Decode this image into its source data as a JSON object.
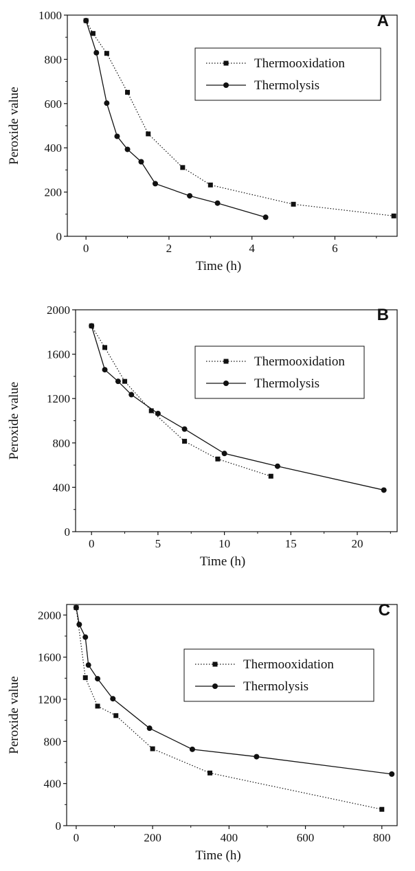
{
  "chart_data": [
    {
      "panel": "A",
      "type": "line",
      "xlabel": "Time (h)",
      "ylabel": "Peroxide value",
      "xlim": [
        -0.45,
        7.5
      ],
      "ylim": [
        0,
        1000
      ],
      "xticks": [
        0,
        2,
        4,
        6
      ],
      "yticks": [
        0,
        200,
        400,
        600,
        800,
        1000
      ],
      "grid": false,
      "legend_position": "top-right",
      "series": [
        {
          "name": "Thermooxidation",
          "marker": "square",
          "line": "dotted",
          "x": [
            0,
            0.17,
            0.5,
            1.0,
            1.5,
            2.33,
            3.0,
            5.0,
            7.42
          ],
          "y": [
            975,
            917,
            827,
            651,
            463,
            311,
            232,
            145,
            92
          ]
        },
        {
          "name": "Thermolysis",
          "marker": "circle",
          "line": "solid",
          "x": [
            0,
            0.25,
            0.5,
            0.75,
            1.0,
            1.33,
            1.67,
            2.5,
            3.17,
            4.33
          ],
          "y": [
            975,
            830,
            602,
            452,
            393,
            337,
            238,
            183,
            150,
            86
          ]
        }
      ]
    },
    {
      "panel": "B",
      "type": "line",
      "xlabel": "Time (h)",
      "ylabel": "Peroxide value",
      "xlim": [
        -1.2,
        23.0
      ],
      "ylim": [
        0,
        2000
      ],
      "xticks": [
        0,
        5,
        10,
        15,
        20
      ],
      "yticks": [
        0,
        400,
        800,
        1200,
        1600,
        2000
      ],
      "grid": false,
      "legend_position": "top-right",
      "series": [
        {
          "name": "Thermooxidation",
          "marker": "square",
          "line": "dotted",
          "x": [
            0,
            1.0,
            2.5,
            4.5,
            7.0,
            9.5,
            13.5
          ],
          "y": [
            1855,
            1660,
            1355,
            1090,
            815,
            655,
            500
          ]
        },
        {
          "name": "Thermolysis",
          "marker": "circle",
          "line": "solid",
          "x": [
            0,
            1.0,
            2.0,
            3.0,
            5.0,
            7.0,
            10.0,
            14.0,
            22.0
          ],
          "y": [
            1855,
            1460,
            1355,
            1235,
            1065,
            925,
            705,
            590,
            375
          ]
        }
      ]
    },
    {
      "panel": "C",
      "type": "line",
      "xlabel": "Time (h)",
      "ylabel": "Peroxide value",
      "xlim": [
        -25,
        840
      ],
      "ylim": [
        0,
        2100
      ],
      "xticks": [
        0,
        200,
        400,
        600,
        800
      ],
      "yticks": [
        0,
        400,
        800,
        1200,
        1600,
        2000
      ],
      "grid": false,
      "legend_position": "top-right",
      "series": [
        {
          "name": "Thermooxidation",
          "marker": "square",
          "line": "dotted",
          "x": [
            0,
            24,
            56,
            104,
            200,
            350,
            800
          ],
          "y": [
            2070,
            1405,
            1135,
            1045,
            730,
            500,
            155
          ]
        },
        {
          "name": "Thermolysis",
          "marker": "circle",
          "line": "solid",
          "x": [
            0,
            8,
            24,
            32,
            56,
            96,
            192,
            304,
            472,
            826
          ],
          "y": [
            2070,
            1910,
            1790,
            1525,
            1395,
            1205,
            925,
            725,
            655,
            490
          ]
        }
      ]
    }
  ]
}
